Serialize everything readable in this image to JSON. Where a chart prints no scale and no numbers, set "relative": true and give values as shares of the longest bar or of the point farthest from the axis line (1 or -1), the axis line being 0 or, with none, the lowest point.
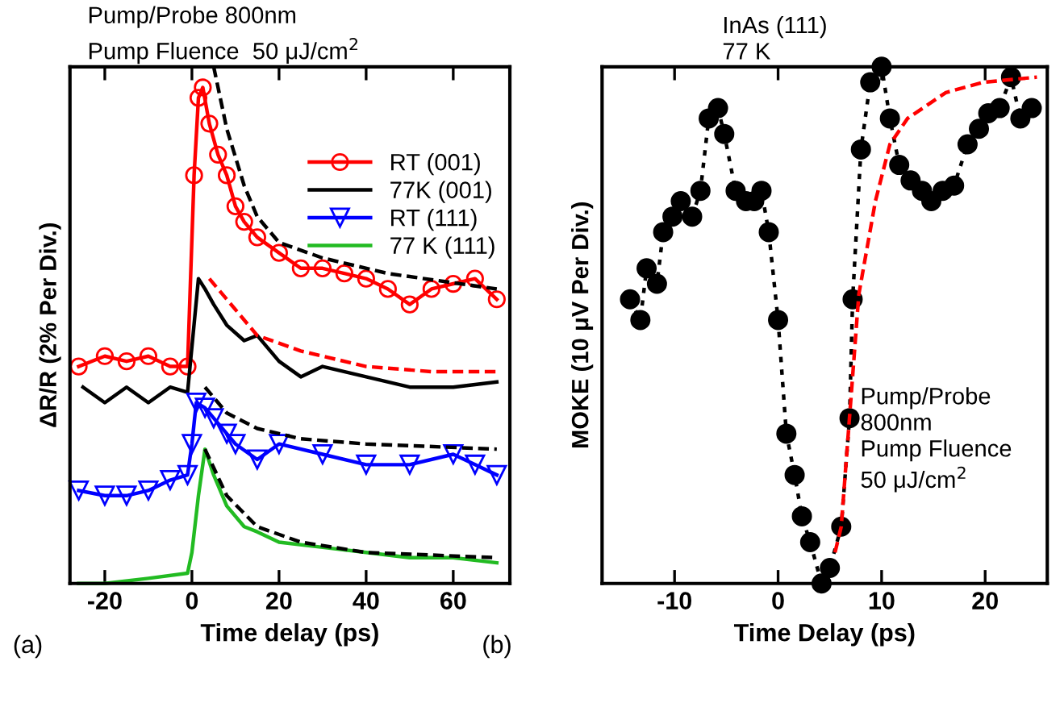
{
  "chart_data": [
    {
      "type": "line",
      "relative": true,
      "xlabel": "Time delay (ps)",
      "ylabel": "ΔR/R (2% Per Div.)",
      "xlim": [
        -28,
        73
      ],
      "xticks": [
        -20,
        0,
        20,
        40,
        60
      ],
      "legend": "top right",
      "grid": false,
      "annotations": [
        "Pump/Probe 800nm",
        "Pump Fluence  50 μJ/cm$^{2}$",
        "(a)"
      ],
      "series": [
        {
          "name": "RT (001)",
          "color": "#ff0000",
          "marker": "circle",
          "line_style": "solid",
          "x": [
            -26,
            -20,
            -15,
            -10,
            -5,
            -1,
            0.5,
            1.5,
            2.5,
            4,
            6,
            8,
            10,
            12,
            15,
            20,
            25,
            30,
            35,
            40,
            45,
            50,
            55,
            60,
            65,
            70
          ],
          "values": [
            0.42,
            0.44,
            0.43,
            0.44,
            0.42,
            0.42,
            0.79,
            0.94,
            0.96,
            0.89,
            0.83,
            0.79,
            0.73,
            0.7,
            0.67,
            0.64,
            0.61,
            0.61,
            0.6,
            0.59,
            0.57,
            0.54,
            0.57,
            0.58,
            0.59,
            0.55
          ]
        },
        {
          "name": "77K (001)",
          "color": "#000000",
          "marker": "none",
          "line_style": "solid",
          "x": [
            -25,
            -20,
            -15,
            -10,
            -5,
            -1,
            1.5,
            3,
            5,
            8,
            12,
            15,
            20,
            25,
            30,
            40,
            50,
            60,
            70
          ],
          "values": [
            0.38,
            0.35,
            0.38,
            0.35,
            0.38,
            0.37,
            0.59,
            0.57,
            0.54,
            0.5,
            0.47,
            0.48,
            0.43,
            0.4,
            0.42,
            0.4,
            0.38,
            0.38,
            0.39
          ]
        },
        {
          "name": "RT (111)",
          "color": "#0000ff",
          "marker": "triangle",
          "line_style": "solid",
          "x": [
            -26,
            -20,
            -15,
            -10,
            -5,
            -1,
            0,
            1,
            3,
            5,
            8,
            10,
            15,
            20,
            30,
            40,
            50,
            60,
            65,
            70
          ],
          "values": [
            0.18,
            0.17,
            0.17,
            0.18,
            0.2,
            0.21,
            0.27,
            0.35,
            0.34,
            0.32,
            0.29,
            0.27,
            0.24,
            0.27,
            0.25,
            0.23,
            0.23,
            0.25,
            0.23,
            0.21
          ]
        },
        {
          "name": "77 K (111)",
          "color": "#22bb22",
          "marker": "none",
          "line_style": "solid",
          "x": [
            -26,
            -20,
            -10,
            -1,
            0,
            1.5,
            3,
            5,
            8,
            12,
            15,
            20,
            30,
            40,
            50,
            60,
            70
          ],
          "values": [
            0.0,
            0.0,
            0.01,
            0.02,
            0.06,
            0.17,
            0.26,
            0.21,
            0.15,
            0.11,
            0.1,
            0.08,
            0.07,
            0.06,
            0.05,
            0.05,
            0.04
          ]
        },
        {
          "color": "#000000",
          "marker": "none",
          "line_style": "dashed",
          "x": [
            5,
            8,
            12,
            15,
            20,
            30,
            45,
            70
          ],
          "values": [
            1.0,
            0.88,
            0.77,
            0.71,
            0.66,
            0.63,
            0.6,
            0.57
          ]
        },
        {
          "color": "#ff0000",
          "marker": "none",
          "line_style": "dashed",
          "x": [
            4,
            8,
            15,
            25,
            40,
            55,
            70
          ],
          "values": [
            0.59,
            0.55,
            0.48,
            0.45,
            0.42,
            0.41,
            0.41
          ]
        },
        {
          "color": "#000000",
          "marker": "none",
          "line_style": "dashed",
          "x": [
            3,
            8,
            15,
            25,
            40,
            70
          ],
          "values": [
            0.38,
            0.33,
            0.3,
            0.28,
            0.27,
            0.26
          ]
        },
        {
          "color": "#000000",
          "marker": "none",
          "line_style": "dashed",
          "x": [
            3,
            8,
            15,
            25,
            40,
            70
          ],
          "values": [
            0.26,
            0.17,
            0.11,
            0.08,
            0.06,
            0.05
          ]
        }
      ]
    },
    {
      "type": "line",
      "relative": true,
      "xlabel": "Time Delay (ps)",
      "ylabel": "MOKE (10 μV Per Div.)",
      "xlim": [
        -17,
        26
      ],
      "xticks": [
        -10,
        0,
        10,
        20
      ],
      "legend": false,
      "grid": false,
      "annotations": [
        "InAs (111)\n77 K",
        "Pump/Probe\n800nm\nPump Fluence\n50 μJ/cm$^{2}$",
        "(b)"
      ],
      "series": [
        {
          "color": "#000000",
          "marker": "circle",
          "line_style": "dotted",
          "x": [
            -14.3,
            -13.3,
            -12.7,
            -11.7,
            -11.1,
            -10.2,
            -9.4,
            -8.3,
            -7.5,
            -6.7,
            -5.8,
            -5.2,
            -4.1,
            -3.1,
            -2.3,
            -1.6,
            -0.9,
            0.0,
            0.8,
            1.6,
            2.3,
            3.1,
            4.2,
            5.0,
            6.1,
            6.9,
            7.2,
            8.0,
            8.9,
            10.0,
            10.8,
            11.7,
            12.8,
            13.9,
            14.8,
            15.9,
            17.0,
            18.3,
            19.4,
            20.3,
            21.4,
            22.5,
            23.4,
            24.5
          ],
          "values": [
            0.55,
            0.51,
            0.61,
            0.58,
            0.68,
            0.71,
            0.74,
            0.71,
            0.76,
            0.9,
            0.92,
            0.87,
            0.76,
            0.74,
            0.74,
            0.76,
            0.68,
            0.51,
            0.29,
            0.21,
            0.13,
            0.08,
            0.0,
            0.03,
            0.11,
            0.32,
            0.55,
            0.84,
            0.97,
            1.0,
            0.9,
            0.81,
            0.78,
            0.76,
            0.74,
            0.76,
            0.77,
            0.85,
            0.88,
            0.91,
            0.92,
            0.98,
            0.9,
            0.92
          ]
        },
        {
          "color": "#ff0000",
          "marker": "none",
          "line_style": "dashed",
          "x": [
            5.5,
            6.1,
            7.8,
            9.4,
            10.8,
            12.5,
            16.2,
            19.8,
            25
          ],
          "values": [
            0.06,
            0.11,
            0.56,
            0.74,
            0.85,
            0.9,
            0.95,
            0.97,
            0.98
          ]
        }
      ]
    }
  ]
}
